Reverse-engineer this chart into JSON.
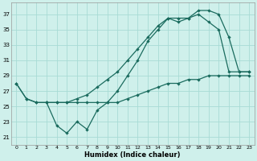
{
  "xlabel": "Humidex (Indice chaleur)",
  "bg_color": "#cff0eb",
  "grid_color": "#a8dbd5",
  "line_color": "#1a6b5e",
  "xlim": [
    -0.5,
    23.5
  ],
  "ylim": [
    20.0,
    38.5
  ],
  "xticks": [
    0,
    1,
    2,
    3,
    4,
    5,
    6,
    7,
    8,
    9,
    10,
    11,
    12,
    13,
    14,
    15,
    16,
    17,
    18,
    19,
    20,
    21,
    22,
    23
  ],
  "yticks": [
    21,
    23,
    25,
    27,
    29,
    31,
    33,
    35,
    37
  ],
  "line1_x": [
    0,
    1,
    2,
    3,
    4,
    5,
    6,
    7,
    8,
    9,
    10,
    11,
    12,
    13,
    14,
    15,
    16,
    17,
    18,
    19,
    20,
    21,
    22,
    23
  ],
  "line1_y": [
    28.0,
    26.0,
    25.5,
    25.5,
    25.5,
    25.5,
    25.5,
    25.5,
    25.5,
    25.5,
    25.5,
    26.0,
    26.5,
    27.0,
    27.5,
    28.0,
    28.0,
    28.5,
    28.5,
    29.0,
    29.0,
    29.0,
    29.0,
    29.0
  ],
  "line2_x": [
    0,
    1,
    2,
    3,
    4,
    5,
    6,
    7,
    8,
    9,
    10,
    11,
    12,
    13,
    14,
    15,
    16,
    17,
    18,
    19,
    20,
    21,
    22,
    23
  ],
  "line2_y": [
    28.0,
    26.0,
    25.5,
    25.5,
    25.5,
    25.5,
    26.0,
    26.5,
    27.5,
    28.5,
    29.5,
    31.0,
    32.5,
    34.0,
    35.5,
    36.5,
    36.0,
    36.5,
    37.0,
    36.0,
    35.0,
    29.5,
    29.5,
    29.5
  ],
  "line3_x": [
    3,
    4,
    5,
    6,
    7,
    8,
    9,
    10,
    11,
    12,
    13,
    14,
    15,
    16,
    17,
    18,
    19,
    20,
    21,
    22,
    23
  ],
  "line3_y": [
    25.5,
    22.5,
    21.5,
    23.0,
    22.0,
    24.5,
    25.5,
    27.0,
    29.0,
    31.0,
    33.5,
    35.0,
    36.5,
    36.5,
    36.5,
    37.5,
    37.5,
    37.0,
    34.0,
    29.5,
    29.5
  ]
}
